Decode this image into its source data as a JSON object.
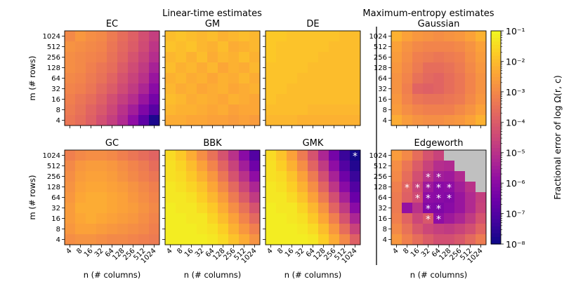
{
  "chart_data": {
    "type": "heatmap",
    "group_titles": [
      "Linear-time estimates",
      "Maximum-entropy estimates"
    ],
    "xlabel": "n (# columns)",
    "ylabel": "m (# rows)",
    "x_ticks": [
      "4",
      "8",
      "16",
      "32",
      "64",
      "128",
      "256",
      "512",
      "1024"
    ],
    "y_ticks": [
      "4",
      "8",
      "16",
      "32",
      "64",
      "128",
      "256",
      "512",
      "1024"
    ],
    "colorbar": {
      "label": "Fractional error of log Ω(r, c)",
      "scale": "log",
      "range": [
        1e-08,
        0.1
      ],
      "ticks": [
        "10⁻⁸",
        "10⁻⁷",
        "10⁻⁶",
        "10⁻⁵",
        "10⁻⁴",
        "10⁻³",
        "10⁻²",
        "10⁻¹"
      ],
      "colormap": "plasma"
    },
    "na_color": "#c0c0c0",
    "marker": "*",
    "panels": [
      {
        "title": "EC",
        "grid": "linear-top",
        "rows": [
          [
            -3.0,
            -2.7,
            -2.9,
            -3.0,
            -3.3,
            -3.6,
            -3.9,
            -4.3,
            -4.7
          ],
          [
            -2.8,
            -2.9,
            -3.0,
            -3.1,
            -3.4,
            -3.7,
            -4.0,
            -4.4,
            -4.9
          ],
          [
            -2.9,
            -3.0,
            -3.1,
            -3.2,
            -3.5,
            -3.8,
            -4.2,
            -4.6,
            -5.1
          ],
          [
            -2.9,
            -3.0,
            -3.2,
            -3.4,
            -3.6,
            -4.0,
            -4.4,
            -4.8,
            -5.4
          ],
          [
            -3.0,
            -3.1,
            -3.3,
            -3.5,
            -3.8,
            -4.2,
            -4.6,
            -5.0,
            -5.7
          ],
          [
            -3.1,
            -3.2,
            -3.4,
            -3.7,
            -4.0,
            -4.4,
            -4.8,
            -5.3,
            -6.0
          ],
          [
            -3.2,
            -3.4,
            -3.6,
            -3.9,
            -4.3,
            -4.7,
            -5.1,
            -5.7,
            -6.4
          ],
          [
            -3.3,
            -3.5,
            -3.8,
            -4.1,
            -4.5,
            -5.0,
            -5.5,
            -6.2,
            -6.9
          ],
          [
            -3.4,
            -3.6,
            -3.9,
            -4.3,
            -4.7,
            -5.2,
            -5.9,
            -6.8,
            -7.8
          ]
        ],
        "stars": []
      },
      {
        "title": "GM",
        "grid": "linear-top",
        "rows": [
          [
            -2.0,
            -1.9,
            -2.0,
            -2.1,
            -2.0,
            -2.2,
            -2.1,
            -2.0,
            -2.1
          ],
          [
            -1.9,
            -2.0,
            -1.9,
            -2.1,
            -2.2,
            -2.0,
            -2.3,
            -2.2,
            -2.1
          ],
          [
            -2.1,
            -2.0,
            -2.2,
            -2.0,
            -2.3,
            -2.1,
            -2.2,
            -2.0,
            -2.2
          ],
          [
            -2.0,
            -2.2,
            -2.1,
            -2.3,
            -2.1,
            -2.4,
            -2.2,
            -2.3,
            -2.1
          ],
          [
            -2.2,
            -2.1,
            -2.3,
            -2.2,
            -2.4,
            -2.2,
            -2.3,
            -2.1,
            -2.3
          ],
          [
            -2.1,
            -2.3,
            -2.2,
            -2.4,
            -2.3,
            -2.2,
            -2.4,
            -2.3,
            -2.2
          ],
          [
            -2.0,
            -2.1,
            -2.3,
            -2.2,
            -2.3,
            -2.4,
            -2.2,
            -2.3,
            -2.4
          ],
          [
            -2.1,
            -2.2,
            -2.2,
            -2.3,
            -2.4,
            -2.3,
            -2.5,
            -2.4,
            -2.4
          ],
          [
            -2.3,
            -2.3,
            -2.4,
            -2.4,
            -2.5,
            -2.5,
            -2.6,
            -2.5,
            -2.6
          ]
        ],
        "stars": []
      },
      {
        "title": "DE",
        "grid": "linear-top",
        "rows": [
          [
            -1.8,
            -1.8,
            -1.9,
            -1.9,
            -1.9,
            -1.9,
            -1.9,
            -2.0,
            -2.0
          ],
          [
            -1.8,
            -1.9,
            -1.9,
            -1.9,
            -1.9,
            -1.9,
            -2.0,
            -2.0,
            -2.0
          ],
          [
            -1.8,
            -1.9,
            -1.9,
            -1.9,
            -1.9,
            -2.0,
            -2.0,
            -2.0,
            -2.0
          ],
          [
            -1.9,
            -1.9,
            -1.9,
            -1.9,
            -2.0,
            -2.0,
            -2.0,
            -2.0,
            -2.0
          ],
          [
            -1.9,
            -1.9,
            -1.9,
            -2.0,
            -2.0,
            -2.0,
            -2.0,
            -2.0,
            -2.0
          ],
          [
            -1.9,
            -1.9,
            -2.0,
            -2.0,
            -2.0,
            -2.0,
            -2.0,
            -2.0,
            -2.0
          ],
          [
            -1.9,
            -2.0,
            -2.0,
            -2.0,
            -2.0,
            -2.0,
            -2.0,
            -2.0,
            -2.0
          ],
          [
            -2.0,
            -2.0,
            -2.0,
            -2.0,
            -2.1,
            -2.1,
            -2.1,
            -2.1,
            -2.1
          ],
          [
            -2.1,
            -2.1,
            -2.1,
            -2.2,
            -2.2,
            -2.2,
            -2.2,
            -2.2,
            -2.2
          ]
        ],
        "stars": []
      },
      {
        "title": "Gaussian",
        "grid": "maxent-top",
        "rows": [
          [
            -2.2,
            -2.5,
            -2.7,
            -2.8,
            -2.9,
            -2.8,
            -2.7,
            -2.5,
            -2.2
          ],
          [
            -2.5,
            -2.8,
            -3.0,
            -3.1,
            -3.1,
            -3.1,
            -3.0,
            -2.8,
            -2.5
          ],
          [
            -2.6,
            -2.9,
            -3.2,
            -3.3,
            -3.4,
            -3.3,
            -3.2,
            -2.9,
            -2.6
          ],
          [
            -2.7,
            -3.0,
            -3.3,
            -3.6,
            -3.6,
            -3.5,
            -3.3,
            -3.0,
            -2.7
          ],
          [
            -2.8,
            -3.1,
            -3.5,
            -3.7,
            -3.8,
            -3.6,
            -3.4,
            -3.1,
            -2.8
          ],
          [
            -2.8,
            -3.2,
            -3.8,
            -3.9,
            -3.8,
            -3.6,
            -3.4,
            -3.1,
            -2.8
          ],
          [
            -2.7,
            -3.1,
            -3.4,
            -3.5,
            -3.5,
            -3.4,
            -3.3,
            -3.0,
            -2.7
          ],
          [
            -2.6,
            -2.9,
            -3.1,
            -3.2,
            -3.2,
            -3.2,
            -3.0,
            -2.8,
            -2.5
          ],
          [
            -2.3,
            -2.6,
            -2.8,
            -2.9,
            -2.9,
            -2.8,
            -2.7,
            -2.5,
            -2.2
          ]
        ],
        "stars": []
      },
      {
        "title": "GC",
        "grid": "linear-bottom",
        "rows": [
          [
            -3.2,
            -3.0,
            -2.9,
            -2.9,
            -3.0,
            -3.2,
            -3.4,
            -3.6,
            -3.8
          ],
          [
            -3.0,
            -2.7,
            -2.6,
            -2.6,
            -2.7,
            -2.9,
            -3.1,
            -3.3,
            -3.6
          ],
          [
            -2.9,
            -2.6,
            -2.5,
            -2.5,
            -2.6,
            -2.8,
            -3.0,
            -3.2,
            -3.4
          ],
          [
            -2.8,
            -2.5,
            -2.4,
            -2.4,
            -2.5,
            -2.6,
            -2.8,
            -3.0,
            -3.2
          ],
          [
            -2.7,
            -2.4,
            -2.3,
            -2.3,
            -2.4,
            -2.5,
            -2.7,
            -2.9,
            -3.1
          ],
          [
            -2.6,
            -2.3,
            -2.3,
            -2.3,
            -2.4,
            -2.5,
            -2.6,
            -2.8,
            -3.0
          ],
          [
            -2.6,
            -2.4,
            -2.3,
            -2.4,
            -2.5,
            -2.6,
            -2.7,
            -2.9,
            -3.1
          ],
          [
            -2.7,
            -2.5,
            -2.5,
            -2.6,
            -2.7,
            -2.8,
            -2.9,
            -3.0,
            -3.2
          ],
          [
            -2.9,
            -2.8,
            -2.8,
            -2.9,
            -3.0,
            -3.0,
            -3.1,
            -3.2,
            -3.3
          ]
        ],
        "stars": []
      },
      {
        "title": "BBK",
        "grid": "linear-bottom",
        "rows": [
          [
            -1.5,
            -1.8,
            -2.3,
            -2.9,
            -3.5,
            -4.2,
            -5.0,
            -6.0,
            -7.0
          ],
          [
            -1.4,
            -1.6,
            -2.0,
            -2.5,
            -3.1,
            -3.8,
            -4.6,
            -5.5,
            -6.5
          ],
          [
            -1.4,
            -1.5,
            -1.8,
            -2.2,
            -2.7,
            -3.4,
            -4.2,
            -5.0,
            -5.9
          ],
          [
            -1.3,
            -1.4,
            -1.6,
            -1.9,
            -2.4,
            -3.0,
            -3.7,
            -4.5,
            -5.3
          ],
          [
            -1.3,
            -1.3,
            -1.4,
            -1.7,
            -2.1,
            -2.6,
            -3.3,
            -4.0,
            -4.8
          ],
          [
            -1.2,
            -1.3,
            -1.3,
            -1.5,
            -1.8,
            -2.3,
            -2.9,
            -3.5,
            -4.2
          ],
          [
            -1.2,
            -1.2,
            -1.3,
            -1.3,
            -1.6,
            -2.0,
            -2.5,
            -3.1,
            -3.7
          ],
          [
            -1.2,
            -1.2,
            -1.2,
            -1.3,
            -1.4,
            -1.7,
            -2.2,
            -2.7,
            -3.2
          ],
          [
            -1.2,
            -1.2,
            -1.2,
            -1.2,
            -1.3,
            -1.5,
            -1.9,
            -2.3,
            -2.8
          ]
        ],
        "stars": []
      },
      {
        "title": "GMK",
        "grid": "linear-bottom",
        "rows": [
          [
            -1.5,
            -1.9,
            -2.5,
            -3.3,
            -4.2,
            -5.3,
            -6.4,
            -7.4,
            -7.9
          ],
          [
            -1.4,
            -1.7,
            -2.2,
            -2.9,
            -3.8,
            -4.8,
            -5.9,
            -7.0,
            -7.7
          ],
          [
            -1.4,
            -1.5,
            -1.9,
            -2.5,
            -3.3,
            -4.3,
            -5.4,
            -6.5,
            -7.4
          ],
          [
            -1.3,
            -1.4,
            -1.7,
            -2.2,
            -2.9,
            -3.8,
            -4.9,
            -6.0,
            -7.0
          ],
          [
            -1.3,
            -1.3,
            -1.5,
            -1.9,
            -2.5,
            -3.3,
            -4.3,
            -5.4,
            -6.6
          ],
          [
            -1.2,
            -1.3,
            -1.3,
            -1.6,
            -2.1,
            -2.8,
            -3.8,
            -4.8,
            -6.0
          ],
          [
            -1.2,
            -1.2,
            -1.3,
            -1.4,
            -1.8,
            -2.4,
            -3.2,
            -4.2,
            -5.3
          ],
          [
            -1.2,
            -1.2,
            -1.2,
            -1.3,
            -1.5,
            -2.0,
            -2.7,
            -3.6,
            -4.6
          ],
          [
            -1.2,
            -1.2,
            -1.2,
            -1.2,
            -1.3,
            -1.7,
            -2.3,
            -3.0,
            -3.9
          ]
        ],
        "stars": [
          [
            0,
            8
          ]
        ]
      },
      {
        "title": "Edgeworth",
        "grid": "maxent-bottom",
        "rows": [
          [
            -2.6,
            -3.0,
            -3.6,
            -4.2,
            -4.6,
            null,
            null,
            null,
            null
          ],
          [
            -2.9,
            -3.4,
            -4.0,
            -4.6,
            -5.1,
            -5.2,
            null,
            null,
            null
          ],
          [
            -3.0,
            -3.6,
            -4.3,
            -5.0,
            -5.5,
            -5.6,
            -5.2,
            null,
            null
          ],
          [
            -3.2,
            -3.8,
            -4.6,
            -5.6,
            -6.0,
            -5.9,
            -5.5,
            -5.0,
            null
          ],
          [
            -3.3,
            -3.9,
            -4.4,
            -5.9,
            -6.0,
            -6.1,
            -5.7,
            -5.2,
            -4.7
          ],
          [
            -3.3,
            -5.8,
            -5.0,
            -6.1,
            -6.2,
            -6.0,
            -5.7,
            -5.2,
            -4.6
          ],
          [
            -3.2,
            -3.8,
            -4.5,
            -4.1,
            -5.9,
            -5.6,
            -5.3,
            -4.8,
            -4.2
          ],
          [
            -3.0,
            -3.5,
            -4.1,
            -4.5,
            -4.7,
            -4.8,
            -4.6,
            -4.3,
            -3.8
          ],
          [
            -2.7,
            -3.2,
            -3.6,
            -4.0,
            -4.3,
            -4.3,
            -4.1,
            -3.7,
            -3.3
          ]
        ],
        "stars": [
          [
            2,
            3
          ],
          [
            2,
            4
          ],
          [
            3,
            1
          ],
          [
            3,
            2
          ],
          [
            3,
            3
          ],
          [
            3,
            4
          ],
          [
            3,
            5
          ],
          [
            4,
            2
          ],
          [
            4,
            3
          ],
          [
            4,
            4
          ],
          [
            4,
            5
          ],
          [
            5,
            3
          ],
          [
            5,
            4
          ],
          [
            6,
            3
          ],
          [
            6,
            4
          ]
        ]
      }
    ]
  }
}
